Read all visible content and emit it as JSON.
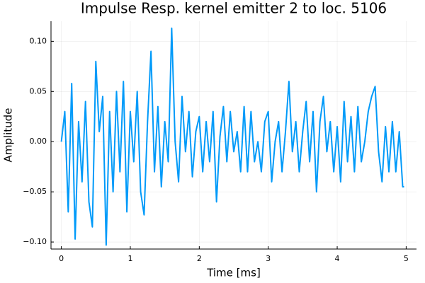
{
  "chart_data": {
    "type": "line",
    "title": "Impulse Resp. kernel emitter 2 to loc. 5106",
    "x_label": "Time [ms]",
    "y_label": "Amplitude",
    "x": [
      0,
      0.05,
      0.1,
      0.15,
      0.2,
      0.25,
      0.3,
      0.35,
      0.4,
      0.45,
      0.5,
      0.55,
      0.6,
      0.65,
      0.7,
      0.75,
      0.8,
      0.85,
      0.9,
      0.95,
      1.0,
      1.05,
      1.1,
      1.15,
      1.2,
      1.25,
      1.3,
      1.35,
      1.4,
      1.45,
      1.5,
      1.55,
      1.6,
      1.65,
      1.7,
      1.75,
      1.8,
      1.85,
      1.9,
      1.95,
      2.0,
      2.05,
      2.1,
      2.15,
      2.2,
      2.25,
      2.3,
      2.35,
      2.4,
      2.45,
      2.5,
      2.55,
      2.6,
      2.65,
      2.7,
      2.75,
      2.8,
      2.85,
      2.9,
      2.95,
      3.0,
      3.05,
      3.1,
      3.15,
      3.2,
      3.25,
      3.3,
      3.35,
      3.4,
      3.45,
      3.5,
      3.55,
      3.6,
      3.65,
      3.7,
      3.75,
      3.8,
      3.85,
      3.9,
      3.95,
      4.0,
      4.05,
      4.1,
      4.15,
      4.2,
      4.25,
      4.3,
      4.35,
      4.4,
      4.45,
      4.5,
      4.55,
      4.6,
      4.65,
      4.7,
      4.75,
      4.8,
      4.85,
      4.9,
      4.95,
      4.97
    ],
    "series": [
      {
        "color": "#009af9",
        "values": [
          0.0,
          0.03,
          -0.07,
          0.058,
          -0.097,
          0.02,
          -0.04,
          0.04,
          -0.06,
          -0.085,
          0.08,
          0.01,
          0.045,
          -0.103,
          0.03,
          -0.05,
          0.05,
          -0.03,
          0.06,
          -0.07,
          0.03,
          -0.02,
          0.05,
          -0.05,
          -0.073,
          0.02,
          0.09,
          -0.03,
          0.035,
          -0.045,
          0.02,
          -0.02,
          0.113,
          0.0,
          -0.04,
          0.045,
          -0.01,
          0.03,
          -0.035,
          0.01,
          0.025,
          -0.03,
          0.02,
          -0.02,
          0.03,
          -0.06,
          0.005,
          0.035,
          -0.02,
          0.03,
          -0.01,
          0.01,
          -0.03,
          0.035,
          -0.03,
          0.03,
          -0.02,
          0.0,
          -0.03,
          0.02,
          0.03,
          -0.04,
          0.0,
          0.02,
          -0.03,
          0.01,
          0.06,
          -0.01,
          0.02,
          -0.03,
          0.01,
          0.04,
          -0.02,
          0.03,
          -0.05,
          0.02,
          0.045,
          -0.01,
          0.02,
          -0.03,
          0.015,
          -0.04,
          0.04,
          -0.02,
          0.025,
          -0.03,
          0.035,
          -0.02,
          0.0,
          0.03,
          0.045,
          0.055,
          -0.01,
          -0.04,
          0.015,
          -0.03,
          0.02,
          -0.03,
          0.01,
          -0.045,
          -0.045
        ]
      }
    ],
    "xlim": [
      -0.15,
      5.15
    ],
    "ylim": [
      -0.107,
      0.12
    ],
    "xticks": [
      0,
      1,
      2,
      3,
      4,
      5
    ],
    "yticks": [
      {
        "value": -0.1,
        "label": "−0.10"
      },
      {
        "value": -0.05,
        "label": "−0.05"
      },
      {
        "value": 0,
        "label": "0.00"
      },
      {
        "value": 0.05,
        "label": "0.05"
      },
      {
        "value": 0.1,
        "label": "0.10"
      }
    ],
    "grid": true
  }
}
